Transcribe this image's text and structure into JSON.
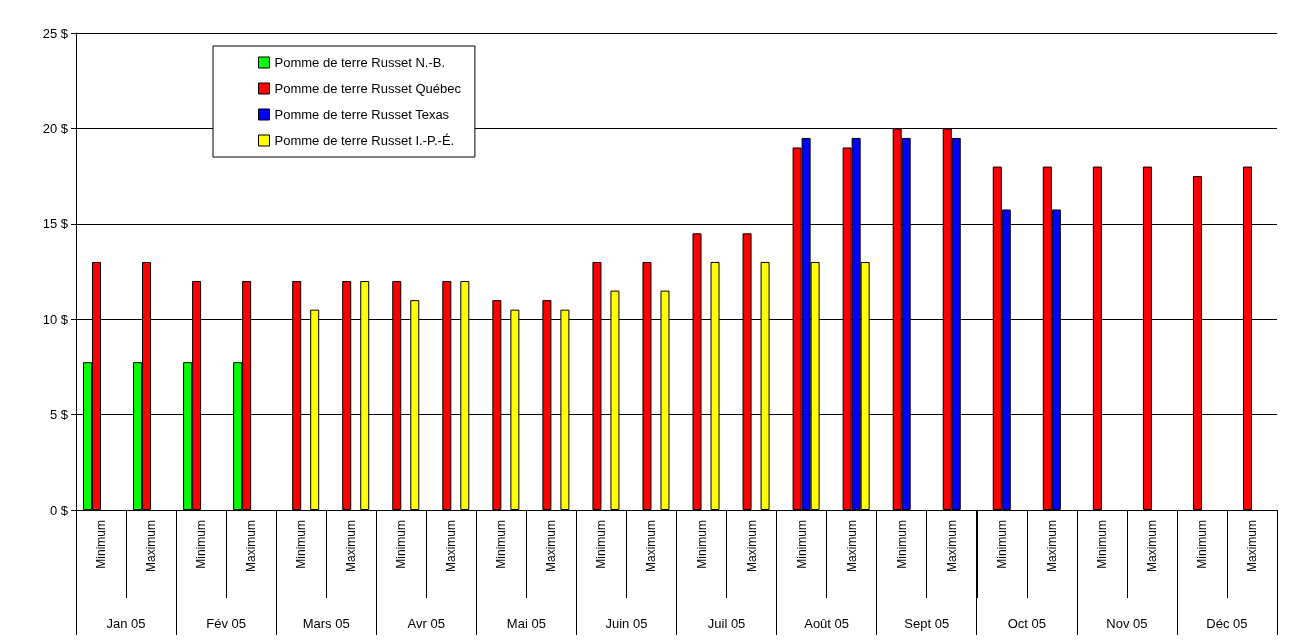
{
  "chart_data": {
    "type": "bar",
    "categories": [
      "Minimum",
      "Maximum",
      "Minimum",
      "Maximum",
      "Minimum",
      "Maximum",
      "Minimum",
      "Maximum",
      "Minimum",
      "Maximum",
      "Minimum",
      "Maximum",
      "Minimum",
      "Maximum",
      "Minimum",
      "Maximum",
      "Minimum",
      "Maximum",
      "Minimum",
      "Maximum",
      "Minimum",
      "Maximum",
      "Minimum",
      "Maximum"
    ],
    "annotations": [
      "Jan 05",
      "Fév 05",
      "Mars 05",
      "Avr 05",
      "Mai 05",
      "Juin 05",
      "Juil 05",
      "Août 05",
      "Sept 05",
      "Oct 05",
      "Nov 05",
      "Déc 05"
    ],
    "series": [
      {
        "name": "Pomme de terre Russet N.-B.",
        "color": "#00ff00",
        "values": [
          7.75,
          7.75,
          7.75,
          7.75,
          null,
          null,
          null,
          null,
          null,
          null,
          null,
          null,
          null,
          null,
          null,
          null,
          null,
          null,
          null,
          null,
          null,
          null,
          null,
          null
        ]
      },
      {
        "name": "Pomme de terre Russet Québec",
        "color": "#ff0000",
        "values": [
          13,
          13,
          12,
          12,
          12,
          12,
          12,
          12,
          11,
          11,
          13,
          13,
          14.5,
          14.5,
          19,
          19,
          20,
          20,
          18,
          18,
          18,
          18,
          17.5,
          18
        ]
      },
      {
        "name": "Pomme de terre Russet Texas",
        "color": "#0000ff",
        "values": [
          null,
          null,
          null,
          null,
          null,
          null,
          null,
          null,
          null,
          null,
          null,
          null,
          null,
          null,
          19.5,
          19.5,
          19.5,
          19.5,
          15.75,
          15.75,
          null,
          null,
          null,
          null
        ]
      },
      {
        "name": "Pomme de terre Russet I.-P.-É.",
        "color": "#ffff00",
        "values": [
          null,
          null,
          null,
          null,
          10.5,
          12,
          11,
          12,
          10.5,
          10.5,
          11.5,
          11.5,
          13,
          13,
          13,
          13,
          null,
          null,
          null,
          null,
          null,
          null,
          null,
          null
        ]
      }
    ],
    "ylim": [
      0,
      25
    ],
    "yticks": [
      {
        "value": 0,
        "label": "0 $"
      },
      {
        "value": 5,
        "label": "5 $"
      },
      {
        "value": 10,
        "label": "10 $"
      },
      {
        "value": 15,
        "label": "15 $"
      },
      {
        "value": 20,
        "label": "20 $"
      },
      {
        "value": 25,
        "label": "25 $"
      }
    ],
    "grid": "y",
    "legend": "top left"
  }
}
